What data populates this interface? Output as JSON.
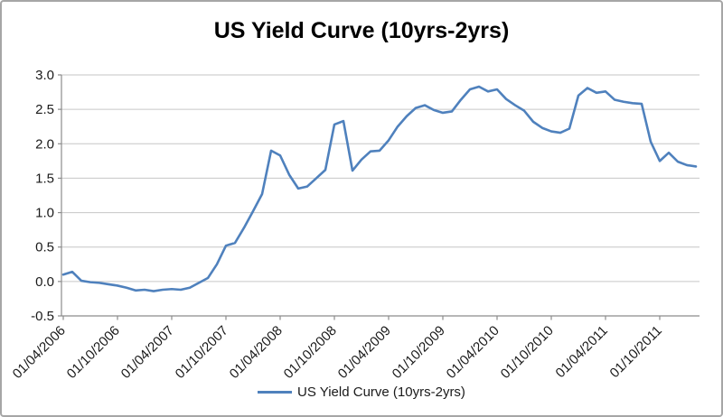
{
  "chart_data": {
    "type": "line",
    "title": "US Yield Curve (10yrs-2yrs)",
    "legend": {
      "position": "bottom",
      "entries": [
        "US Yield Curve (10yrs-2yrs)"
      ]
    },
    "grid": true,
    "ylim": [
      -0.5,
      3.0
    ],
    "ytick_step": 0.5,
    "ytick_labels": [
      "3.0",
      "2.5",
      "2.0",
      "1.5",
      "1.0",
      "0.5",
      "0.0",
      "-0.5"
    ],
    "xtick_labels": [
      "01/04/2006",
      "01/10/2006",
      "01/04/2007",
      "01/10/2007",
      "01/04/2008",
      "01/10/2008",
      "01/04/2009",
      "01/10/2009",
      "01/04/2010",
      "01/10/2010",
      "01/04/2011",
      "01/10/2011"
    ],
    "xtick_label_interval": 6,
    "x_frequency": "monthly",
    "x_start_label": "01/04/2006",
    "series": [
      {
        "name": "US Yield Curve (10yrs-2yrs)",
        "values": [
          0.1,
          0.14,
          0.01,
          -0.01,
          -0.02,
          -0.04,
          -0.06,
          -0.09,
          -0.13,
          -0.12,
          -0.14,
          -0.12,
          -0.11,
          -0.12,
          -0.09,
          -0.02,
          0.05,
          0.25,
          0.52,
          0.56,
          0.78,
          1.02,
          1.27,
          1.9,
          1.83,
          1.55,
          1.35,
          1.38,
          1.5,
          1.62,
          2.28,
          2.33,
          1.61,
          1.77,
          1.89,
          1.9,
          2.05,
          2.25,
          2.4,
          2.52,
          2.56,
          2.49,
          2.45,
          2.47,
          2.64,
          2.79,
          2.83,
          2.76,
          2.79,
          2.65,
          2.56,
          2.48,
          2.32,
          2.23,
          2.18,
          2.16,
          2.22,
          2.7,
          2.81,
          2.74,
          2.76,
          2.64,
          2.61,
          2.59,
          2.58,
          2.03,
          1.75,
          1.87,
          1.74,
          1.69,
          1.67
        ]
      }
    ],
    "colors": {
      "line": "#4F81BD",
      "gridline": "#c6c6c6",
      "axis": "#8c8c8c",
      "text": "#1a1a1a",
      "title": "#000000"
    }
  }
}
